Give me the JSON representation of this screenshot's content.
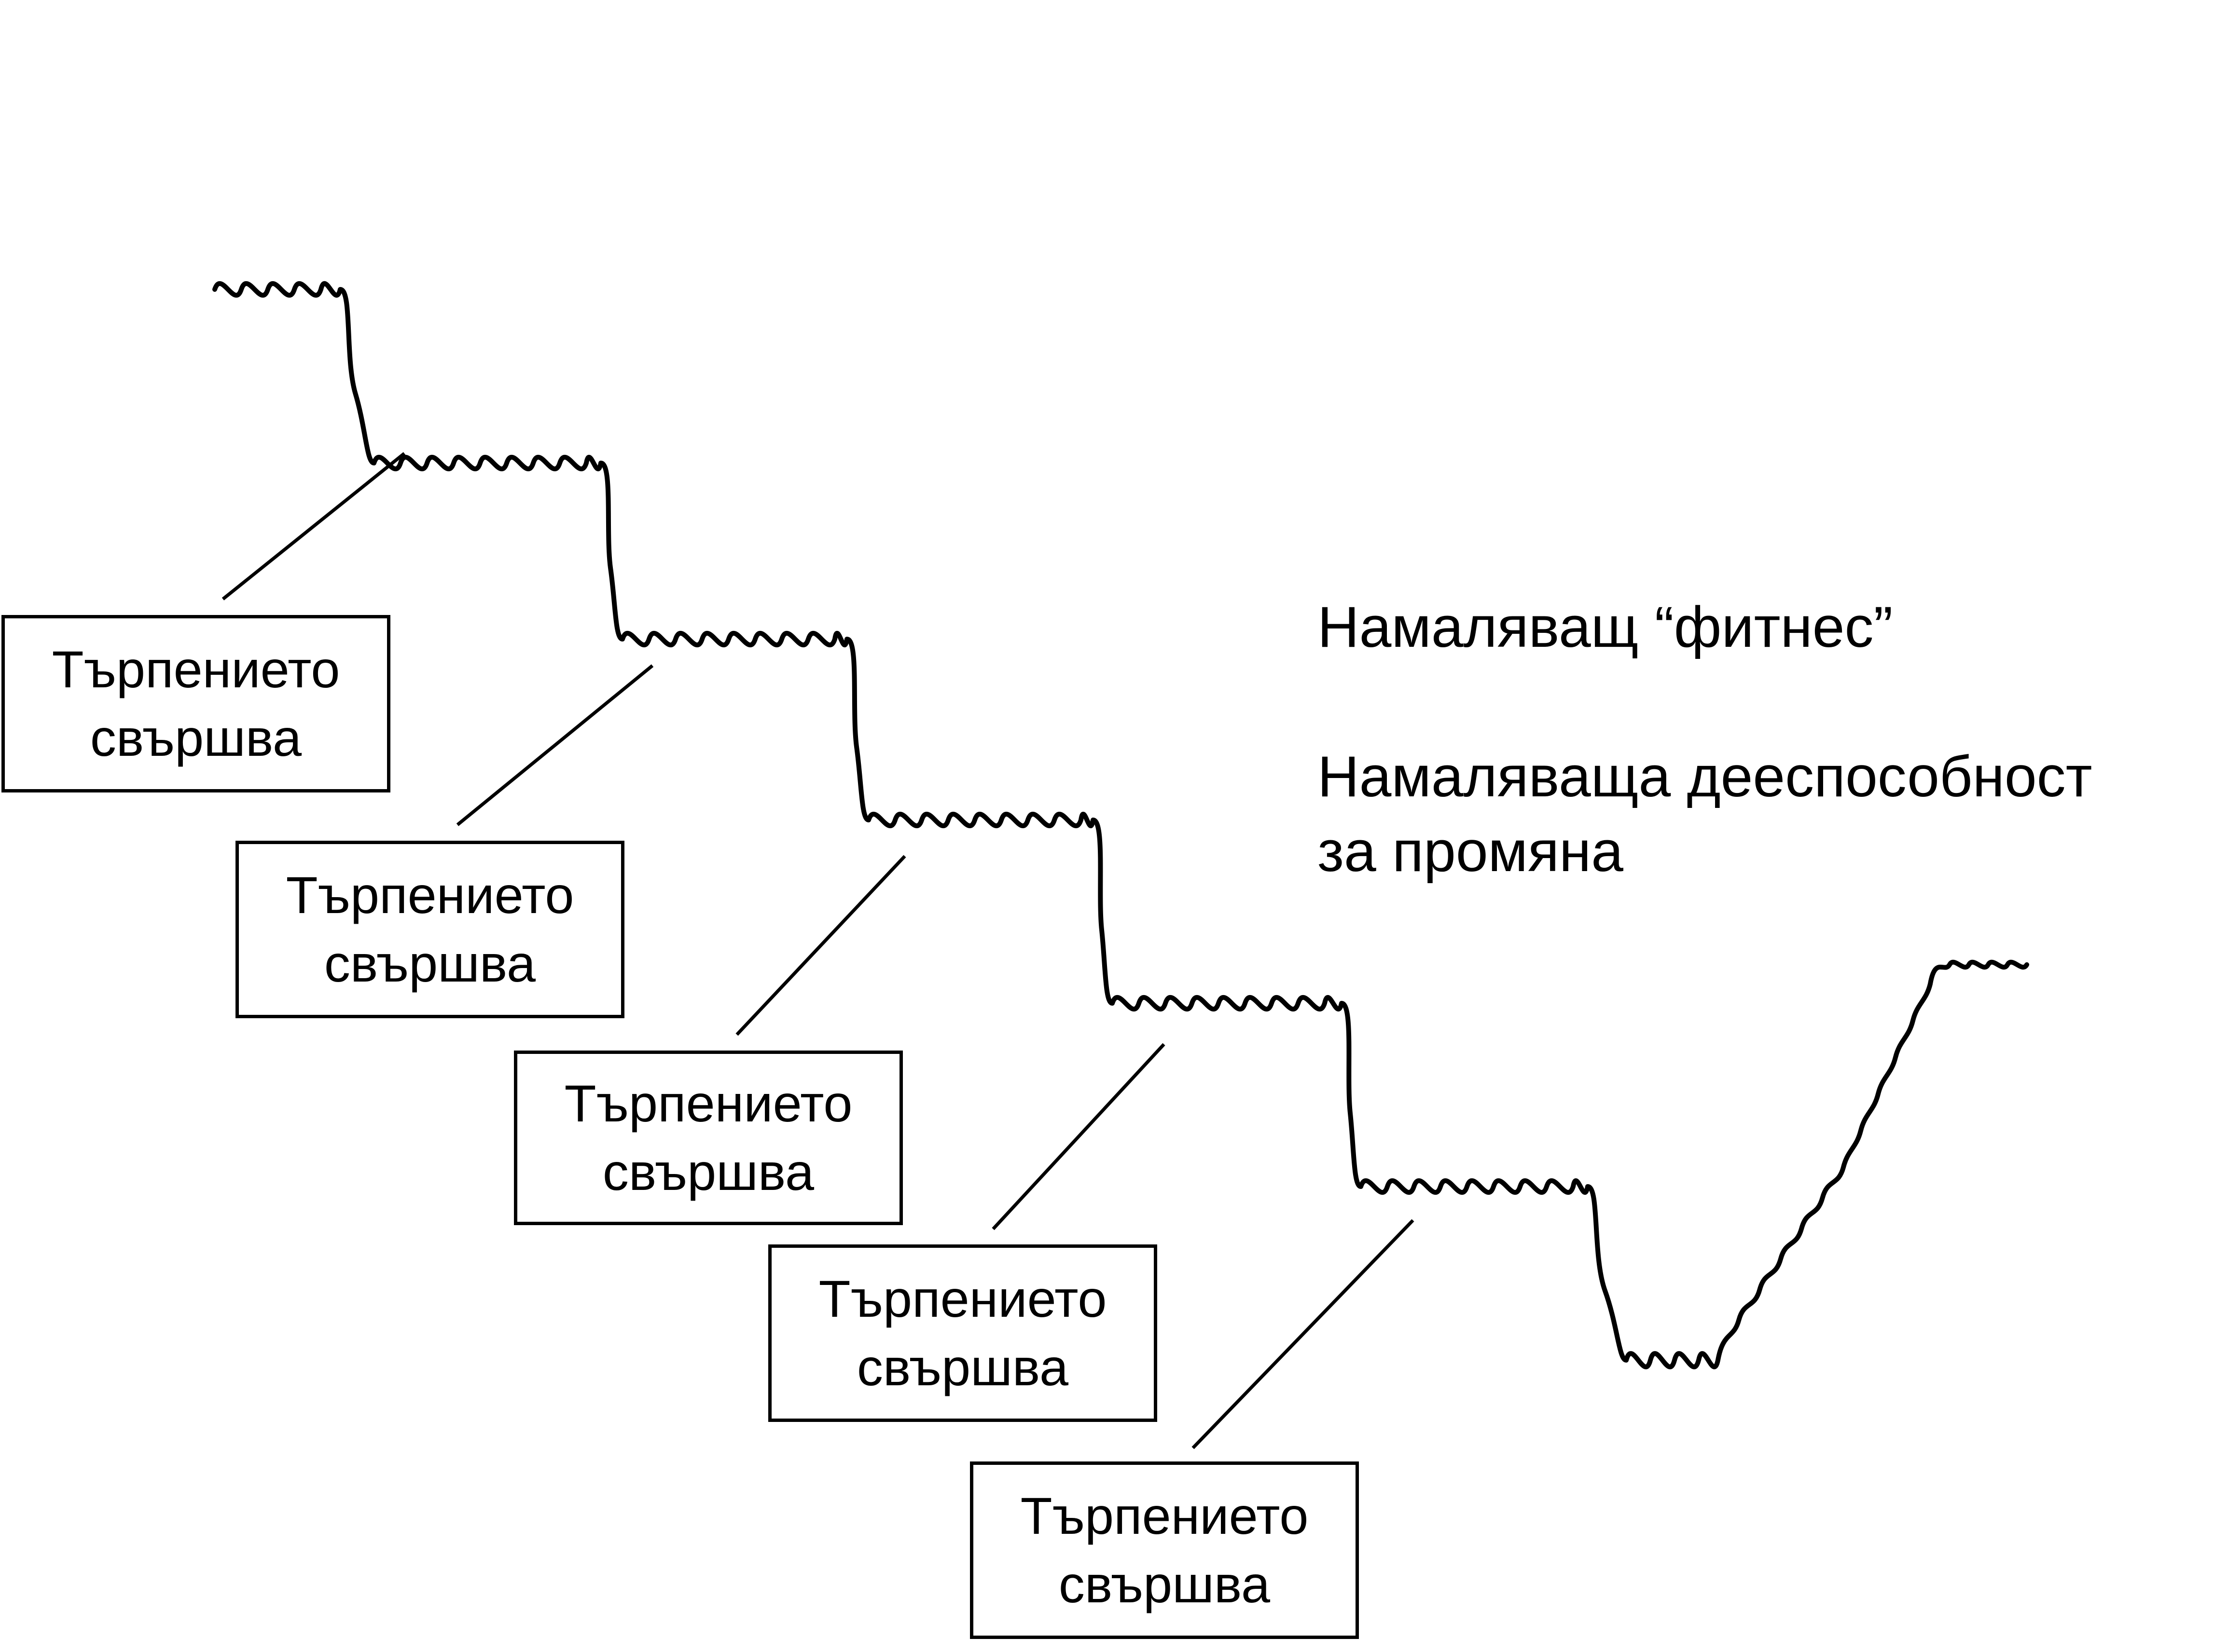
{
  "boxes": [
    {
      "line1": "Търпението",
      "line2": "свършва"
    },
    {
      "line1": "Търпението",
      "line2": "свършва"
    },
    {
      "line1": "Търпението",
      "line2": "свършва"
    },
    {
      "line1": "Търпението",
      "line2": "свършва"
    },
    {
      "line1": "Търпението",
      "line2": "свършва"
    }
  ],
  "annotation": {
    "line1": "Намаляващ “фитнес”",
    "line2": "Намаляваща дееспособност",
    "line3": "за промяна"
  },
  "colors": {
    "stroke": "#000000",
    "background": "#ffffff"
  }
}
